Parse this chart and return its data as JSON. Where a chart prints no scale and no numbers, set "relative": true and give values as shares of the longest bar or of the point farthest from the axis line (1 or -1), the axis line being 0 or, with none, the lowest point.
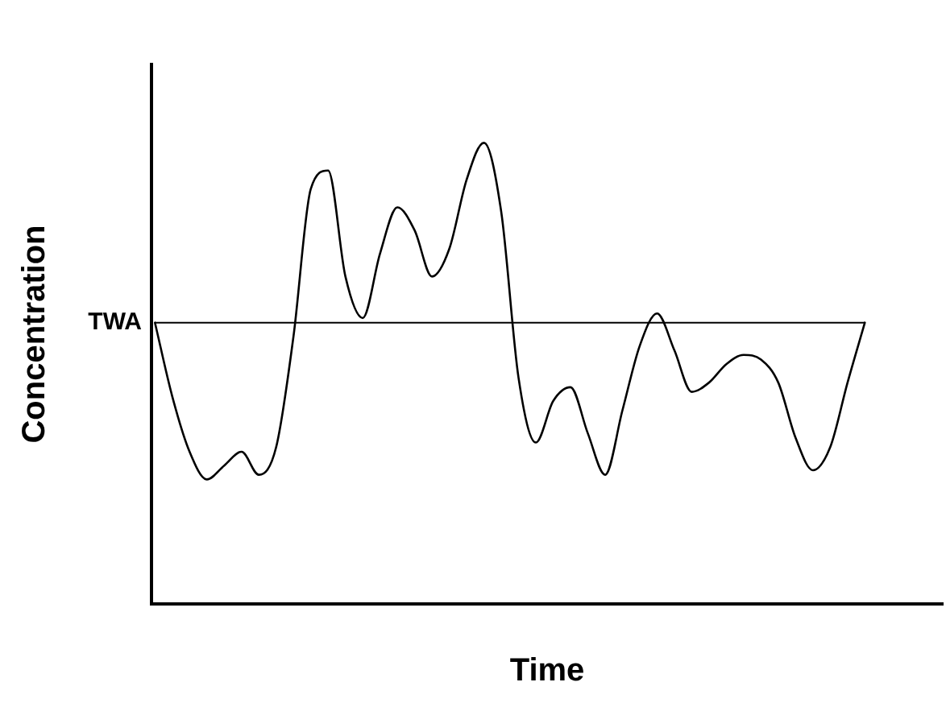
{
  "chart_data": {
    "type": "line",
    "relative": true,
    "xlabel": "Time",
    "ylabel": "Concentration",
    "categories": [
      null,
      null,
      null,
      null,
      null,
      null,
      null,
      null,
      null,
      null,
      null,
      null,
      null,
      null,
      null,
      null,
      null,
      null,
      null,
      null,
      null,
      null,
      null,
      null,
      null,
      null,
      null,
      null,
      null,
      null,
      null,
      null,
      null,
      null,
      null,
      null,
      null,
      null,
      null,
      null,
      null,
      null
    ],
    "series": [
      {
        "color": "#000000",
        "values": [
          0.61,
          0.45,
          0.33,
          0.27,
          0.3,
          0.33,
          0.28,
          0.34,
          0.58,
          0.9,
          0.94,
          0.71,
          0.62,
          0.76,
          0.86,
          0.81,
          0.71,
          0.77,
          0.92,
          1,
          0.85,
          0.49,
          0.35,
          0.44,
          0.47,
          0.37,
          0.28,
          0.42,
          0.56,
          0.63,
          0.55,
          0.46,
          0.48,
          0.52,
          0.54,
          0.53,
          0.48,
          0.36,
          0.29,
          0.34,
          0.48,
          0.61
        ]
      }
    ],
    "ref_lines": [
      {
        "axis": "y",
        "value": 0.61,
        "label": "TWA",
        "color": "#000000"
      }
    ],
    "grid": false,
    "legend": false,
    "marker": "none",
    "line_style": "solid"
  }
}
